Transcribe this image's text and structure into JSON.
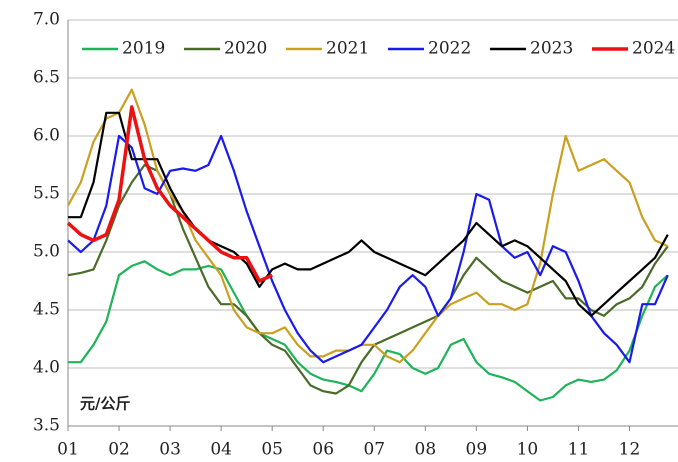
{
  "chart_data": {
    "type": "line",
    "annotation": "元/公斤",
    "x": [
      1,
      1.25,
      1.5,
      1.75,
      2,
      2.25,
      2.5,
      2.75,
      3,
      3.25,
      3.5,
      3.75,
      4,
      4.25,
      4.5,
      4.75,
      5,
      5.25,
      5.5,
      5.75,
      6,
      6.25,
      6.5,
      6.75,
      7,
      7.25,
      7.5,
      7.75,
      8,
      8.25,
      8.5,
      8.75,
      9,
      9.25,
      9.5,
      9.75,
      10,
      10.25,
      10.5,
      10.75,
      11,
      11.25,
      11.5,
      11.75,
      12,
      12.25,
      12.5,
      12.75
    ],
    "xlim": [
      1,
      12.95
    ],
    "xticks": [
      {
        "value": 1,
        "label": "01"
      },
      {
        "value": 2,
        "label": "02"
      },
      {
        "value": 3,
        "label": "03"
      },
      {
        "value": 4,
        "label": "04"
      },
      {
        "value": 5,
        "label": "05"
      },
      {
        "value": 6,
        "label": "06"
      },
      {
        "value": 7,
        "label": "07"
      },
      {
        "value": 8,
        "label": "08"
      },
      {
        "value": 9,
        "label": "09"
      },
      {
        "value": 10,
        "label": "10"
      },
      {
        "value": 11,
        "label": "11"
      },
      {
        "value": 12,
        "label": "12"
      }
    ],
    "ylim": [
      3.5,
      7.0
    ],
    "yticks": [
      {
        "value": 3.5,
        "label": "3.5"
      },
      {
        "value": 4,
        "label": "4.0"
      },
      {
        "value": 4.5,
        "label": "4.5"
      },
      {
        "value": 5,
        "label": "5.0"
      },
      {
        "value": 5.5,
        "label": "5.5"
      },
      {
        "value": 6,
        "label": "6.0"
      },
      {
        "value": 6.5,
        "label": "6.5"
      },
      {
        "value": 7,
        "label": "7.0"
      }
    ],
    "grid": true,
    "legend": "top",
    "series": [
      {
        "name": "2019",
        "color": "#1fb35a",
        "values": [
          4.05,
          4.05,
          4.2,
          4.4,
          4.8,
          4.88,
          4.92,
          4.85,
          4.8,
          4.85,
          4.85,
          4.88,
          4.85,
          4.65,
          4.45,
          4.3,
          4.25,
          4.2,
          4.05,
          3.95,
          3.9,
          3.88,
          3.85,
          3.8,
          3.95,
          4.15,
          4.12,
          4.0,
          3.95,
          4.0,
          4.2,
          4.25,
          4.05,
          3.95,
          3.92,
          3.88,
          3.8,
          3.72,
          3.75,
          3.85,
          3.9,
          3.88,
          3.9,
          3.98,
          4.15,
          4.45,
          4.7,
          4.8
        ]
      },
      {
        "name": "2020",
        "color": "#4a6b2a",
        "values": [
          4.8,
          4.82,
          4.85,
          5.1,
          5.4,
          5.6,
          5.75,
          5.7,
          5.5,
          5.2,
          4.95,
          4.7,
          4.55,
          4.55,
          4.45,
          4.3,
          4.2,
          4.15,
          4.0,
          3.85,
          3.8,
          3.78,
          3.85,
          4.05,
          4.2,
          4.25,
          4.3,
          4.35,
          4.4,
          4.45,
          4.6,
          4.8,
          4.95,
          4.85,
          4.75,
          4.7,
          4.65,
          4.7,
          4.75,
          4.6,
          4.6,
          4.5,
          4.45,
          4.55,
          4.6,
          4.7,
          4.9,
          5.05
        ]
      },
      {
        "name": "2021",
        "color": "#c9a020",
        "values": [
          5.4,
          5.6,
          5.95,
          6.15,
          6.2,
          6.4,
          6.1,
          5.7,
          5.5,
          5.35,
          5.1,
          4.95,
          4.8,
          4.5,
          4.35,
          4.3,
          4.3,
          4.35,
          4.2,
          4.1,
          4.1,
          4.15,
          4.15,
          4.2,
          4.2,
          4.1,
          4.05,
          4.15,
          4.3,
          4.45,
          4.55,
          4.6,
          4.65,
          4.55,
          4.55,
          4.5,
          4.55,
          4.9,
          5.5,
          6.0,
          5.7,
          5.75,
          5.8,
          5.7,
          5.6,
          5.3,
          5.1,
          5.05
        ]
      },
      {
        "name": "2022",
        "color": "#1a1aee",
        "values": [
          5.1,
          5.0,
          5.1,
          5.4,
          6.0,
          5.9,
          5.55,
          5.5,
          5.7,
          5.72,
          5.7,
          5.75,
          6.0,
          5.7,
          5.35,
          5.05,
          4.75,
          4.5,
          4.3,
          4.15,
          4.05,
          4.1,
          4.15,
          4.2,
          4.35,
          4.5,
          4.7,
          4.8,
          4.7,
          4.45,
          4.6,
          5.0,
          5.5,
          5.45,
          5.05,
          4.95,
          5.0,
          4.8,
          5.05,
          5.0,
          4.75,
          4.45,
          4.3,
          4.2,
          4.05,
          4.55,
          4.55,
          4.8
        ]
      },
      {
        "name": "2023",
        "color": "#000000",
        "values": [
          5.3,
          5.3,
          5.6,
          6.2,
          6.2,
          5.8,
          5.8,
          5.8,
          5.55,
          5.35,
          5.2,
          5.1,
          5.05,
          5.0,
          4.9,
          4.7,
          4.85,
          4.9,
          4.85,
          4.85,
          4.9,
          4.95,
          5.0,
          5.1,
          5.0,
          4.95,
          4.9,
          4.85,
          4.8,
          4.9,
          5.0,
          5.1,
          5.25,
          5.15,
          5.05,
          5.1,
          5.05,
          4.95,
          4.85,
          4.75,
          4.55,
          4.45,
          4.55,
          4.65,
          4.75,
          4.85,
          4.95,
          5.15
        ]
      },
      {
        "name": "2024",
        "color": "#ee1111",
        "values": [
          5.25,
          5.15,
          5.1,
          5.15,
          5.45,
          6.25,
          5.8,
          5.55,
          5.4,
          5.3,
          5.2,
          5.1,
          5.0,
          4.95,
          4.95,
          4.75,
          4.8,
          null,
          null,
          null,
          null,
          null,
          null,
          null,
          null,
          null,
          null,
          null,
          null,
          null,
          null,
          null,
          null,
          null,
          null,
          null,
          null,
          null,
          null,
          null,
          null,
          null,
          null,
          null,
          null,
          null,
          null,
          null
        ]
      }
    ]
  }
}
